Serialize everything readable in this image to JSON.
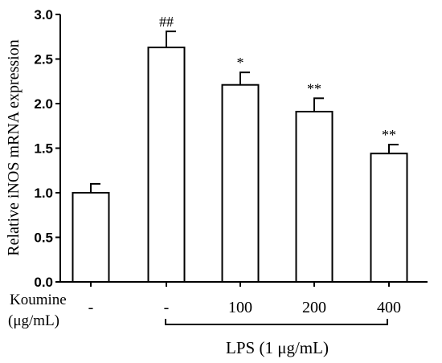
{
  "chart_data": {
    "type": "bar",
    "title": "",
    "xlabel": "",
    "ylabel": "Relative iNOS mRNA expression",
    "ylim": [
      0,
      3.0
    ],
    "yticks": [
      "0.0",
      "0.5",
      "1.0",
      "1.5",
      "2.0",
      "2.5",
      "3.0"
    ],
    "categories": [
      "-",
      "-",
      "100",
      "200",
      "400"
    ],
    "values": [
      1.0,
      2.63,
      2.21,
      1.91,
      1.44
    ],
    "errors": [
      0.1,
      0.18,
      0.14,
      0.15,
      0.1
    ],
    "significance": [
      "",
      "##",
      "*",
      "**",
      "**"
    ],
    "grid": false,
    "bar_fill": "#ffffff",
    "bar_stroke": "#000000",
    "row_label_line1": "Koumine",
    "row_label_line2": "(μg/mL)",
    "lps_label": "LPS (1 μg/mL)"
  }
}
